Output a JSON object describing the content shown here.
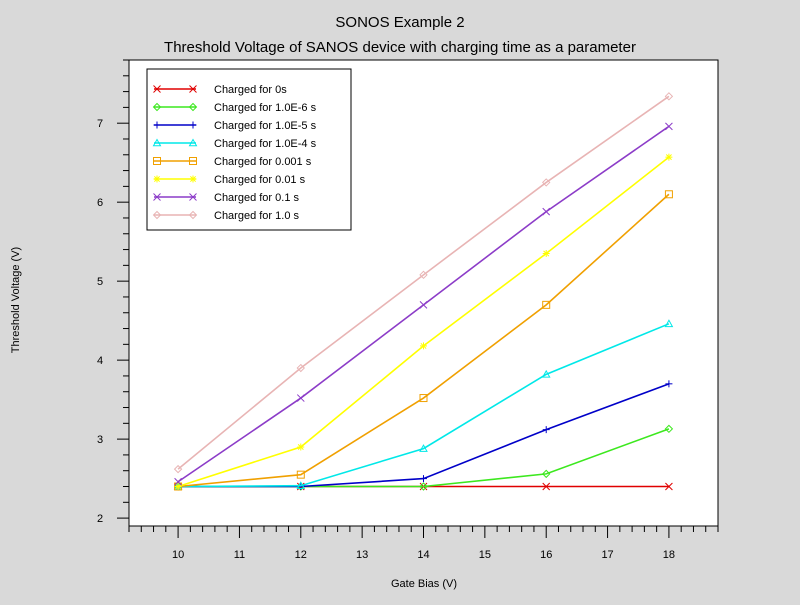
{
  "chart_data": {
    "type": "line",
    "title": "SONOS Example 2",
    "subtitle": "Threshold Voltage of SANOS device with charging time as a parameter",
    "xlabel": "Gate Bias (V)",
    "ylabel": "Threshold Voltage (V)",
    "xlim": [
      9.2,
      18.8
    ],
    "ylim": [
      1.9,
      7.8
    ],
    "xticks": [
      10,
      11,
      12,
      13,
      14,
      15,
      16,
      17,
      18
    ],
    "yticks": [
      2,
      3,
      4,
      5,
      6,
      7
    ],
    "grid": false,
    "legend_position": "top-left",
    "x": [
      10,
      12,
      14,
      16,
      18
    ],
    "series": [
      {
        "name": "Charged for 0s",
        "color": "#e00000",
        "marker": "x",
        "values": [
          2.4,
          2.4,
          2.4,
          2.4,
          2.4
        ]
      },
      {
        "name": "Charged for 1.0E-6 s",
        "color": "#3ce81e",
        "marker": "diamond",
        "values": [
          2.4,
          2.4,
          2.4,
          2.56,
          3.13
        ]
      },
      {
        "name": "Charged for 1.0E-5 s",
        "color": "#0000c8",
        "marker": "plus",
        "values": [
          2.4,
          2.4,
          2.5,
          3.12,
          3.7
        ]
      },
      {
        "name": "Charged for 1.0E-4 s",
        "color": "#00e8e8",
        "marker": "triangle",
        "values": [
          2.4,
          2.41,
          2.88,
          3.82,
          4.46
        ]
      },
      {
        "name": "Charged for 0.001 s",
        "color": "#f0a000",
        "marker": "square",
        "values": [
          2.4,
          2.55,
          3.52,
          4.7,
          6.1
        ]
      },
      {
        "name": "Charged for 0.01 s",
        "color": "#ffff00",
        "marker": "asterisk",
        "values": [
          2.4,
          2.9,
          4.18,
          5.35,
          6.57
        ]
      },
      {
        "name": "Charged for 0.1 s",
        "color": "#8c3cc8",
        "marker": "x",
        "values": [
          2.46,
          3.52,
          4.7,
          5.88,
          6.96
        ]
      },
      {
        "name": "Charged for 1.0 s",
        "color": "#e8b4b4",
        "marker": "diamond",
        "values": [
          2.62,
          3.9,
          5.08,
          6.25,
          7.34
        ]
      }
    ]
  }
}
